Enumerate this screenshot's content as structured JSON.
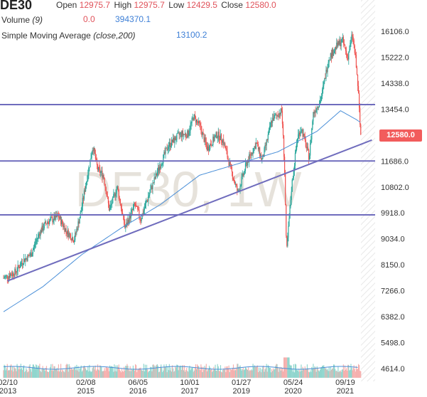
{
  "header": {
    "symbol": "DE30",
    "ohlc": {
      "open_label": "Open",
      "open": "12975.7",
      "high_label": "High",
      "high": "12975.7",
      "low_label": "Low",
      "low": "12429.5",
      "close_label": "Close",
      "close": "12580.0"
    },
    "volume_label": "Volume (9)",
    "volume_values": [
      "0.0",
      "394370.1"
    ],
    "sma_label": "Simple Moving Average (close,200)",
    "sma_value": "13100.2"
  },
  "watermark": "DE30, 1W",
  "last_price_tag": "12580.0",
  "colors": {
    "up": "#26a69a",
    "down": "#ef5350",
    "sma": "#4a8fd8",
    "trendline": "#6f6cbd",
    "price_tag": "#f25c5c",
    "watermark": "#e6e2db"
  },
  "chart_data": {
    "type": "candlestick",
    "timeframe": "weekly",
    "price_axis_ticks": [
      16106.0,
      15222.0,
      14338.0,
      13454.0,
      12570.0,
      11686.0,
      10802.0,
      9918.0,
      9034.0,
      8150.0,
      7266.0,
      6382.0,
      5498.0,
      4614.0
    ],
    "price_axis_tick_labels": [
      "16106.0",
      "15222.0",
      "14338.0",
      "13454.0",
      "",
      "11686.0",
      "10802.0",
      "9918.0",
      "9034.0",
      "8150.0",
      "7266.0",
      "6382.0",
      "5498.0",
      "4614.0"
    ],
    "ylim": [
      4300,
      16600
    ],
    "time_axis_ticks": [
      {
        "label": "02/10",
        "year": "2013",
        "t": 2013.11
      },
      {
        "label": "02/08",
        "year": "2015",
        "t": 2015.1
      },
      {
        "label": "06/05",
        "year": "2016",
        "t": 2016.43
      },
      {
        "label": "10/01",
        "year": "2017",
        "t": 2017.75
      },
      {
        "label": "01/27",
        "year": "2019",
        "t": 2019.07
      },
      {
        "label": "05/24",
        "year": "2020",
        "t": 2020.39
      },
      {
        "label": "09/19",
        "year": "2021",
        "t": 2021.72
      }
    ],
    "xlim": [
      2013.0,
      2022.4
    ],
    "close_anchors": [
      [
        2013.0,
        7700
      ],
      [
        2013.3,
        7900
      ],
      [
        2013.5,
        8300
      ],
      [
        2013.7,
        8500
      ],
      [
        2013.9,
        9200
      ],
      [
        2014.1,
        9600
      ],
      [
        2014.4,
        9800
      ],
      [
        2014.6,
        9300
      ],
      [
        2014.8,
        9000
      ],
      [
        2014.95,
        9800
      ],
      [
        2015.1,
        10900
      ],
      [
        2015.28,
        12200
      ],
      [
        2015.4,
        11400
      ],
      [
        2015.55,
        11200
      ],
      [
        2015.7,
        10000
      ],
      [
        2015.9,
        10800
      ],
      [
        2016.1,
        9400
      ],
      [
        2016.35,
        10200
      ],
      [
        2016.5,
        9700
      ],
      [
        2016.7,
        10500
      ],
      [
        2016.95,
        11400
      ],
      [
        2017.2,
        12200
      ],
      [
        2017.5,
        12600
      ],
      [
        2017.7,
        12600
      ],
      [
        2017.85,
        13200
      ],
      [
        2018.0,
        12900
      ],
      [
        2018.2,
        12100
      ],
      [
        2018.45,
        12600
      ],
      [
        2018.6,
        12400
      ],
      [
        2018.8,
        11400
      ],
      [
        2018.98,
        10600
      ],
      [
        2019.2,
        11600
      ],
      [
        2019.45,
        12300
      ],
      [
        2019.6,
        11700
      ],
      [
        2019.85,
        13100
      ],
      [
        2020.1,
        13400
      ],
      [
        2020.17,
        11500
      ],
      [
        2020.22,
        8500
      ],
      [
        2020.35,
        10800
      ],
      [
        2020.5,
        12500
      ],
      [
        2020.6,
        12800
      ],
      [
        2020.8,
        11800
      ],
      [
        2020.9,
        13300
      ],
      [
        2021.1,
        13800
      ],
      [
        2021.3,
        15200
      ],
      [
        2021.5,
        15600
      ],
      [
        2021.65,
        15800
      ],
      [
        2021.78,
        15200
      ],
      [
        2021.9,
        16000
      ],
      [
        2021.98,
        15200
      ],
      [
        2022.05,
        14100
      ],
      [
        2022.11,
        12580
      ]
    ],
    "sma200_anchors": [
      [
        2013.0,
        6550
      ],
      [
        2014.0,
        7400
      ],
      [
        2015.0,
        8500
      ],
      [
        2016.0,
        9400
      ],
      [
        2017.0,
        10200
      ],
      [
        2018.0,
        11200
      ],
      [
        2019.0,
        11600
      ],
      [
        2020.0,
        12000
      ],
      [
        2021.0,
        12700
      ],
      [
        2021.6,
        13400
      ],
      [
        2022.0,
        13100
      ],
      [
        2022.11,
        13000
      ]
    ],
    "horizontal_lines": [
      13610,
      11686,
      9850
    ],
    "trendline": {
      "from": [
        2013.1,
        7600
      ],
      "to": [
        2022.4,
        12400
      ]
    },
    "last_close": 12580.0,
    "volume": {
      "typical_range": [
        0,
        400000
      ]
    }
  }
}
